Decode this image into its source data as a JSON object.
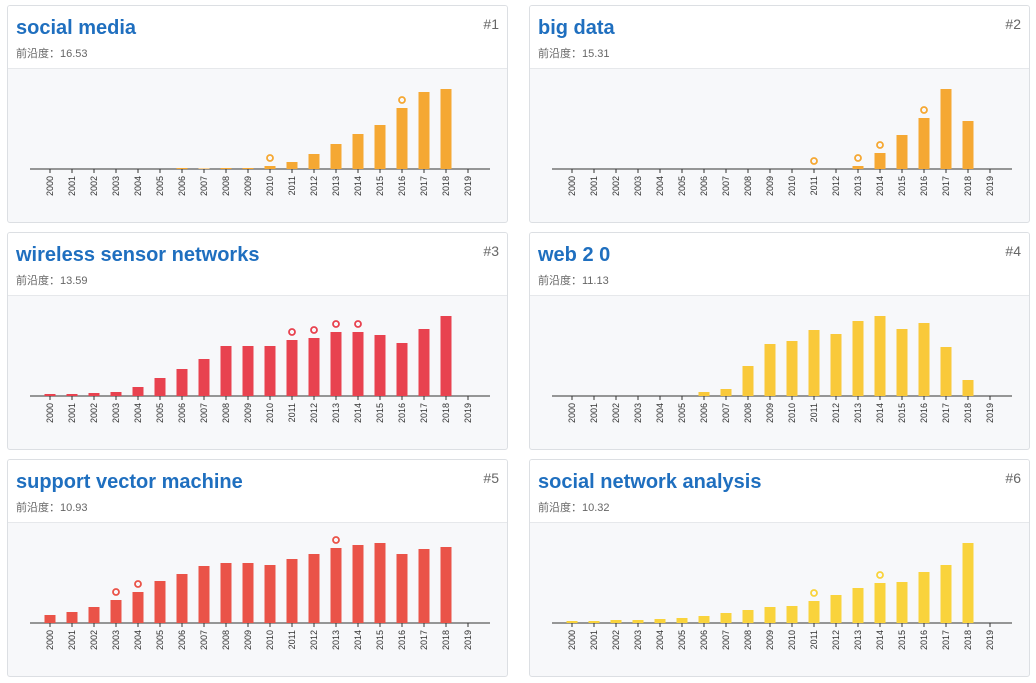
{
  "chart_data": [
    {
      "type": "bar",
      "title": "social media",
      "rank": "#1",
      "subtitle": "前沿度：16.53",
      "color": "#f5a833",
      "categories": [
        "2000",
        "2001",
        "2002",
        "2003",
        "2004",
        "2005",
        "2006",
        "2007",
        "2008",
        "2009",
        "2010",
        "2011",
        "2012",
        "2013",
        "2014",
        "2015",
        "2016",
        "2017",
        "2018",
        "2019"
      ],
      "values": [
        0,
        0,
        0,
        0,
        0,
        0,
        1,
        0.5,
        1,
        1,
        3,
        7,
        15,
        25,
        35,
        44,
        61,
        77,
        80,
        0
      ],
      "highlighted": [
        false,
        false,
        false,
        false,
        false,
        false,
        false,
        false,
        false,
        false,
        true,
        false,
        false,
        false,
        false,
        false,
        true,
        false,
        false,
        false
      ],
      "ylim": [
        0,
        100
      ]
    },
    {
      "type": "bar",
      "title": "big data",
      "rank": "#2",
      "subtitle": "前沿度：15.31",
      "color": "#f5a833",
      "categories": [
        "2000",
        "2001",
        "2002",
        "2003",
        "2004",
        "2005",
        "2006",
        "2007",
        "2008",
        "2009",
        "2010",
        "2011",
        "2012",
        "2013",
        "2014",
        "2015",
        "2016",
        "2017",
        "2018",
        "2019"
      ],
      "values": [
        0,
        0,
        0,
        0,
        0,
        0,
        0,
        0,
        0,
        0,
        0,
        0,
        0,
        3,
        16,
        34,
        51,
        80,
        48,
        0
      ],
      "highlighted": [
        false,
        false,
        false,
        false,
        false,
        false,
        false,
        false,
        false,
        false,
        false,
        true,
        false,
        true,
        true,
        false,
        true,
        false,
        false,
        false
      ],
      "ylim": [
        0,
        100
      ]
    },
    {
      "type": "bar",
      "title": "wireless sensor networks",
      "rank": "#3",
      "subtitle": "前沿度：13.59",
      "color": "#e8424f",
      "categories": [
        "2000",
        "2001",
        "2002",
        "2003",
        "2004",
        "2005",
        "2006",
        "2007",
        "2008",
        "2009",
        "2010",
        "2011",
        "2012",
        "2013",
        "2014",
        "2015",
        "2016",
        "2017",
        "2018",
        "2019"
      ],
      "values": [
        2,
        2,
        3,
        4,
        9,
        18,
        27,
        37,
        50,
        50,
        50,
        56,
        58,
        64,
        64,
        61,
        53,
        67,
        80,
        0
      ],
      "highlighted": [
        false,
        false,
        false,
        false,
        false,
        false,
        false,
        false,
        false,
        false,
        false,
        true,
        true,
        true,
        true,
        false,
        false,
        false,
        false,
        false
      ],
      "ylim": [
        0,
        100
      ]
    },
    {
      "type": "bar",
      "title": "web 2 0",
      "rank": "#4",
      "subtitle": "前沿度：11.13",
      "color": "#f9c93a",
      "categories": [
        "2000",
        "2001",
        "2002",
        "2003",
        "2004",
        "2005",
        "2006",
        "2007",
        "2008",
        "2009",
        "2010",
        "2011",
        "2012",
        "2013",
        "2014",
        "2015",
        "2016",
        "2017",
        "2018",
        "2019"
      ],
      "values": [
        0,
        0,
        0,
        0,
        0,
        0,
        4,
        7,
        30,
        52,
        55,
        66,
        62,
        75,
        80,
        67,
        73,
        49,
        16,
        0
      ],
      "highlighted": [
        false,
        false,
        false,
        false,
        false,
        false,
        false,
        false,
        false,
        false,
        false,
        false,
        false,
        false,
        false,
        false,
        false,
        false,
        false,
        false
      ],
      "ylim": [
        0,
        100
      ]
    },
    {
      "type": "bar",
      "title": "support vector machine",
      "rank": "#5",
      "subtitle": "前沿度：10.93",
      "color": "#ea5348",
      "categories": [
        "2000",
        "2001",
        "2002",
        "2003",
        "2004",
        "2005",
        "2006",
        "2007",
        "2008",
        "2009",
        "2010",
        "2011",
        "2012",
        "2013",
        "2014",
        "2015",
        "2016",
        "2017",
        "2018",
        "2019"
      ],
      "values": [
        8,
        11,
        16,
        23,
        31,
        42,
        49,
        57,
        60,
        60,
        58,
        64,
        69,
        75,
        78,
        80,
        69,
        74,
        76,
        0
      ],
      "highlighted": [
        false,
        false,
        false,
        true,
        true,
        false,
        false,
        false,
        false,
        false,
        false,
        false,
        false,
        true,
        false,
        false,
        false,
        false,
        false,
        false
      ],
      "ylim": [
        0,
        100
      ]
    },
    {
      "type": "bar",
      "title": "social network analysis",
      "rank": "#6",
      "subtitle": "前沿度：10.32",
      "color": "#f9d33c",
      "categories": [
        "2000",
        "2001",
        "2002",
        "2003",
        "2004",
        "2005",
        "2006",
        "2007",
        "2008",
        "2009",
        "2010",
        "2011",
        "2012",
        "2013",
        "2014",
        "2015",
        "2016",
        "2017",
        "2018",
        "2019"
      ],
      "values": [
        2,
        2,
        3,
        3,
        4,
        5,
        7,
        10,
        13,
        16,
        17,
        22,
        28,
        35,
        40,
        41,
        51,
        58,
        80,
        0
      ],
      "highlighted": [
        false,
        false,
        false,
        false,
        false,
        false,
        false,
        false,
        false,
        false,
        false,
        true,
        false,
        false,
        true,
        false,
        false,
        false,
        false,
        false
      ],
      "ylim": [
        0,
        100
      ]
    }
  ]
}
